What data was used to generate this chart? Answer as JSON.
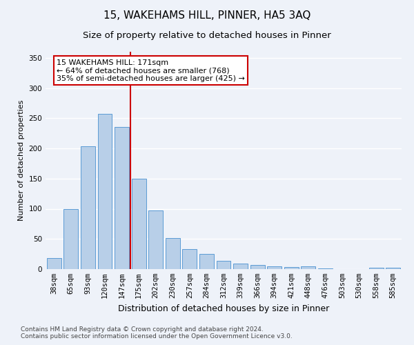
{
  "title": "15, WAKEHAMS HILL, PINNER, HA5 3AQ",
  "subtitle": "Size of property relative to detached houses in Pinner",
  "xlabel": "Distribution of detached houses by size in Pinner",
  "ylabel": "Number of detached properties",
  "categories": [
    "38sqm",
    "65sqm",
    "93sqm",
    "120sqm",
    "147sqm",
    "175sqm",
    "202sqm",
    "230sqm",
    "257sqm",
    "284sqm",
    "312sqm",
    "339sqm",
    "366sqm",
    "394sqm",
    "421sqm",
    "448sqm",
    "476sqm",
    "503sqm",
    "530sqm",
    "558sqm",
    "585sqm"
  ],
  "values": [
    18,
    100,
    204,
    257,
    235,
    150,
    97,
    52,
    33,
    25,
    14,
    9,
    7,
    5,
    4,
    5,
    1,
    0,
    0,
    2,
    2
  ],
  "bar_color": "#b8cfe8",
  "bar_edge_color": "#5b9bd5",
  "vline_x": 4.5,
  "vline_color": "#cc0000",
  "annotation_text": "15 WAKEHAMS HILL: 171sqm\n← 64% of detached houses are smaller (768)\n35% of semi-detached houses are larger (425) →",
  "annotation_box_color": "#ffffff",
  "annotation_box_edge_color": "#cc0000",
  "ylim": [
    0,
    360
  ],
  "yticks": [
    0,
    50,
    100,
    150,
    200,
    250,
    300,
    350
  ],
  "footer_line1": "Contains HM Land Registry data © Crown copyright and database right 2024.",
  "footer_line2": "Contains public sector information licensed under the Open Government Licence v3.0.",
  "background_color": "#eef2f9",
  "grid_color": "#ffffff",
  "title_fontsize": 11,
  "subtitle_fontsize": 9.5,
  "xlabel_fontsize": 9,
  "ylabel_fontsize": 8,
  "tick_fontsize": 7.5,
  "annotation_fontsize": 8,
  "footer_fontsize": 6.5
}
